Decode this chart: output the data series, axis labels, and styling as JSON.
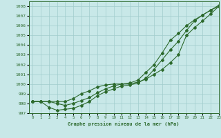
{
  "title": "Graphe pression niveau de la mer (hPa)",
  "xlim": [
    -0.5,
    23
  ],
  "ylim": [
    997,
    1008.5
  ],
  "yticks": [
    997,
    998,
    999,
    1000,
    1001,
    1002,
    1003,
    1004,
    1005,
    1006,
    1007,
    1008
  ],
  "xticks": [
    0,
    1,
    2,
    3,
    4,
    5,
    6,
    7,
    8,
    9,
    10,
    11,
    12,
    13,
    14,
    15,
    16,
    17,
    18,
    19,
    20,
    21,
    22,
    23
  ],
  "line_color": "#2d6a2d",
  "bg_color": "#c8e8e8",
  "grid_color": "#a0cccc",
  "line1": [
    998.2,
    998.2,
    998.2,
    998.0,
    997.8,
    998.0,
    998.3,
    998.6,
    999.1,
    999.5,
    999.8,
    1000.0,
    1000.0,
    1000.2,
    1000.5,
    1001.0,
    1001.5,
    1002.2,
    1003.0,
    1005.0,
    1005.8,
    1006.5,
    1007.2,
    1008.0
  ],
  "line2": [
    998.2,
    998.2,
    998.2,
    998.2,
    998.2,
    998.5,
    999.0,
    999.3,
    999.7,
    999.9,
    1000.0,
    1000.0,
    1000.1,
    1000.4,
    1001.2,
    1002.0,
    1003.2,
    1004.5,
    1005.2,
    1006.0,
    1006.6,
    1007.1,
    1007.6,
    1008.0
  ],
  "line3": [
    998.2,
    998.2,
    997.6,
    997.3,
    997.4,
    997.5,
    997.8,
    998.2,
    998.8,
    999.2,
    999.5,
    999.8,
    999.9,
    1000.1,
    1000.6,
    1001.5,
    1002.5,
    1003.5,
    1004.4,
    1005.5,
    1006.5,
    1007.1,
    1007.6,
    1008.1
  ]
}
